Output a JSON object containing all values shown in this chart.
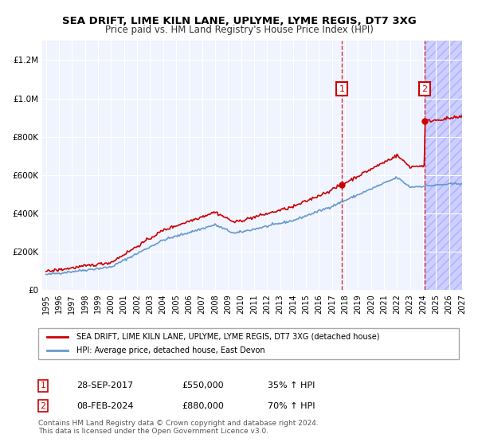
{
  "title": "SEA DRIFT, LIME KILN LANE, UPLYME, LYME REGIS, DT7 3XG",
  "subtitle": "Price paid vs. HM Land Registry's House Price Index (HPI)",
  "legend_line1": "SEA DRIFT, LIME KILN LANE, UPLYME, LYME REGIS, DT7 3XG (detached house)",
  "legend_line2": "HPI: Average price, detached house, East Devon",
  "annotation1_label": "1",
  "annotation1_date": "28-SEP-2017",
  "annotation1_price": "£550,000",
  "annotation1_hpi": "35% ↑ HPI",
  "annotation2_label": "2",
  "annotation2_date": "08-FEB-2024",
  "annotation2_price": "£880,000",
  "annotation2_hpi": "70% ↑ HPI",
  "footer": "Contains HM Land Registry data © Crown copyright and database right 2024.\nThis data is licensed under the Open Government Licence v3.0.",
  "red_color": "#cc0000",
  "blue_color": "#6699cc",
  "dashed_red": "#cc0000",
  "background_plot": "#f0f4ff",
  "hatch_color": "#ccccff",
  "ylim": [
    0,
    1300000
  ],
  "yticks": [
    0,
    200000,
    400000,
    600000,
    800000,
    1000000,
    1200000
  ],
  "xstart_year": 1995,
  "xend_year": 2027,
  "sale1_year": 2017.75,
  "sale2_year": 2024.1,
  "sale1_price": 550000,
  "sale2_price": 880000
}
